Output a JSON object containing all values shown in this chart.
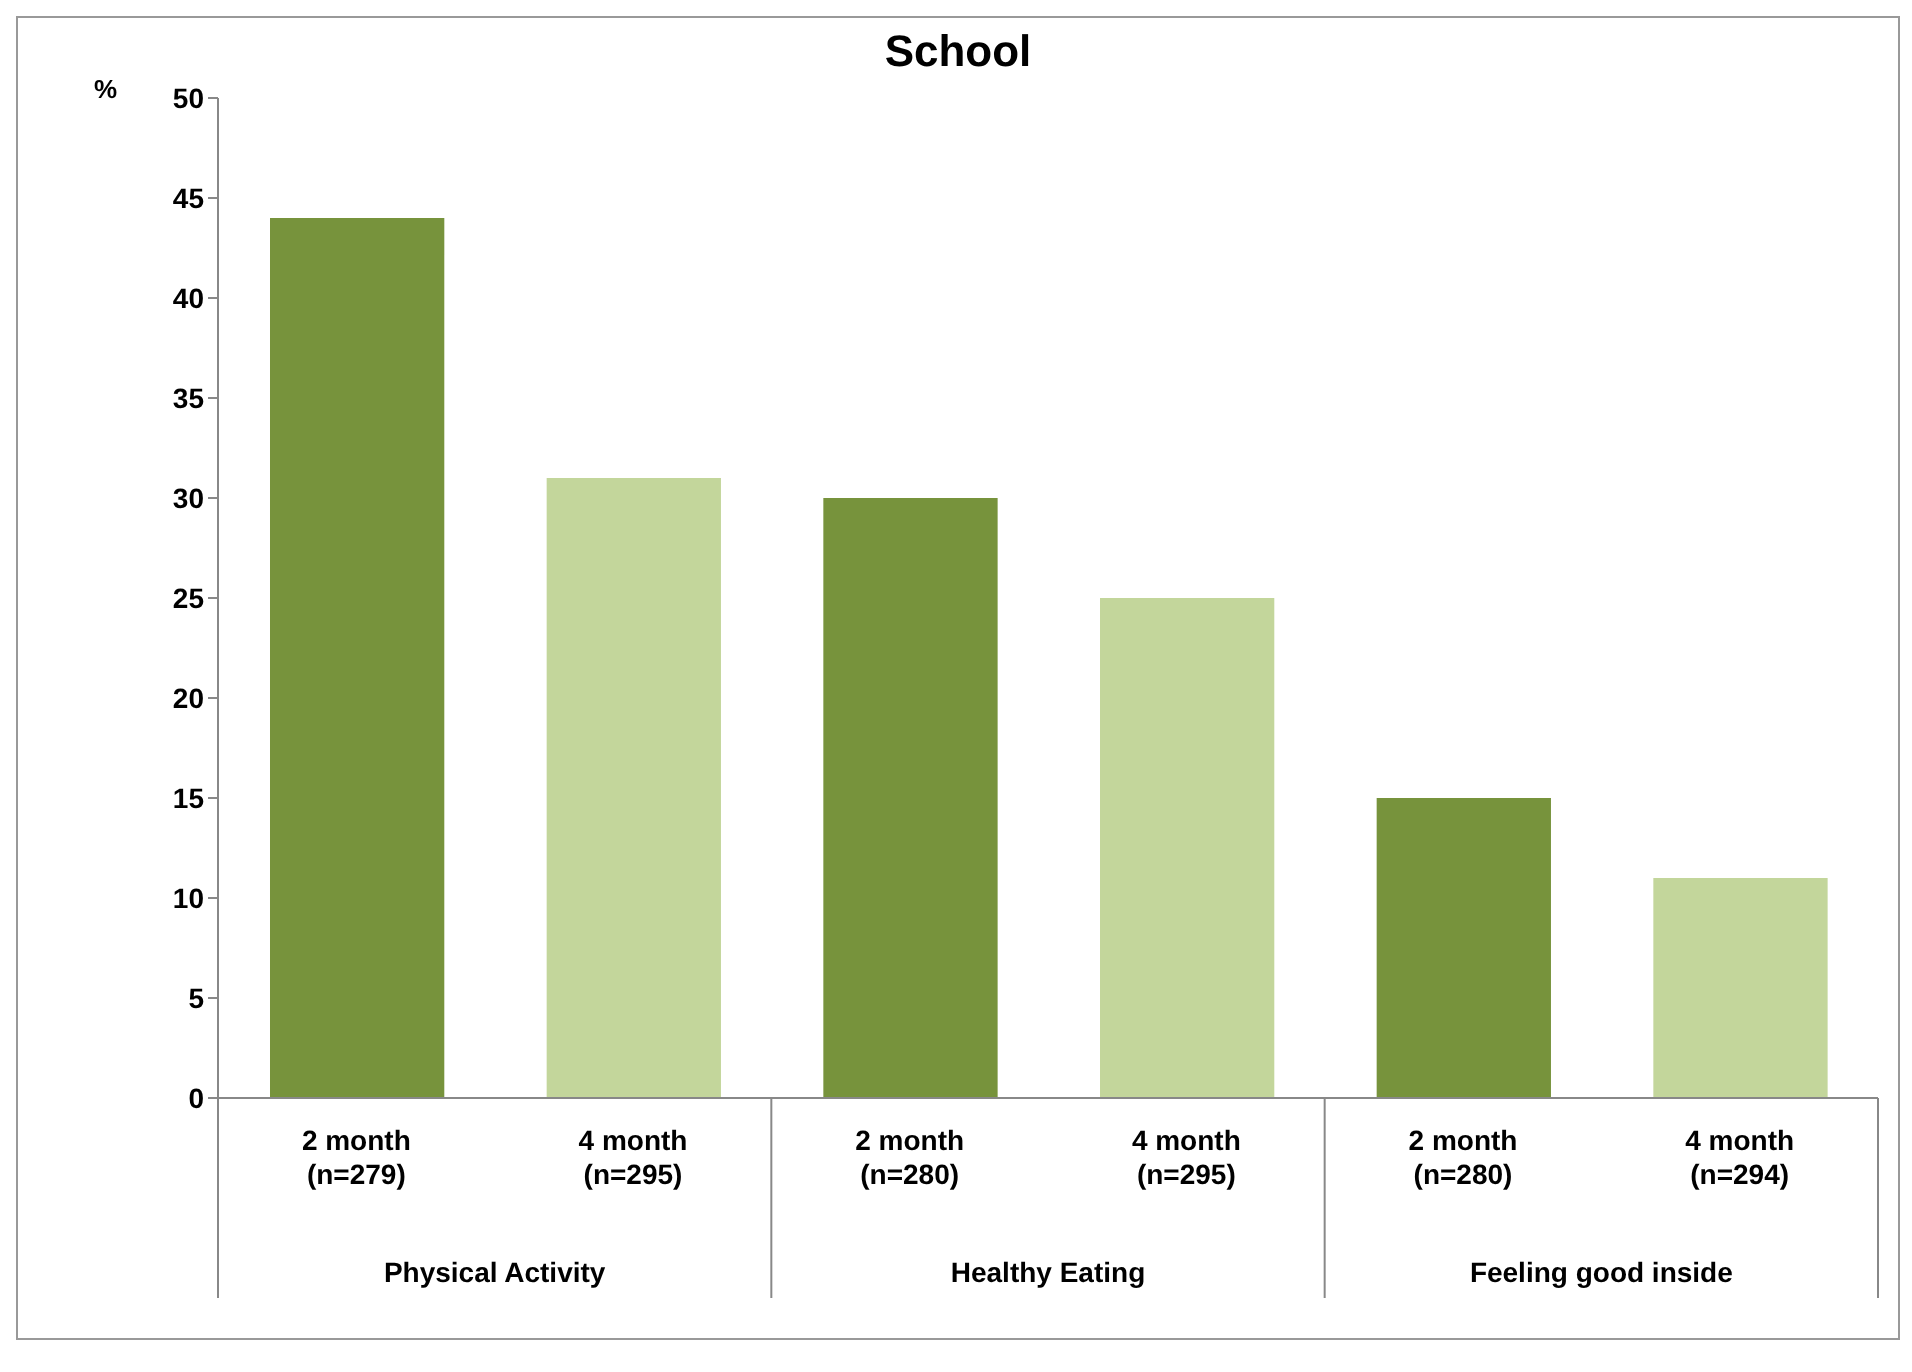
{
  "chart_data": {
    "type": "bar",
    "title": "School",
    "ylabel": "%",
    "categories": [
      "2 month\n(n=279)",
      "4 month\n(n=295)",
      "2 month\n(n=280)",
      "4 month\n(n=295)",
      "2 month\n(n=280)",
      "4 month\n(n=294)"
    ],
    "values": [
      44,
      31,
      30,
      25,
      15,
      11
    ],
    "colors": [
      "#77933c",
      "#c3d69b",
      "#77933c",
      "#c3d69b",
      "#77933c",
      "#c3d69b"
    ],
    "annotations": [
      "Physical Activity",
      "Healthy Eating",
      "Feeling good inside"
    ],
    "ylim": [
      0,
      50
    ],
    "yticks": [
      0,
      5,
      10,
      15,
      20,
      25,
      30,
      35,
      40,
      45,
      50
    ],
    "grid": false
  }
}
